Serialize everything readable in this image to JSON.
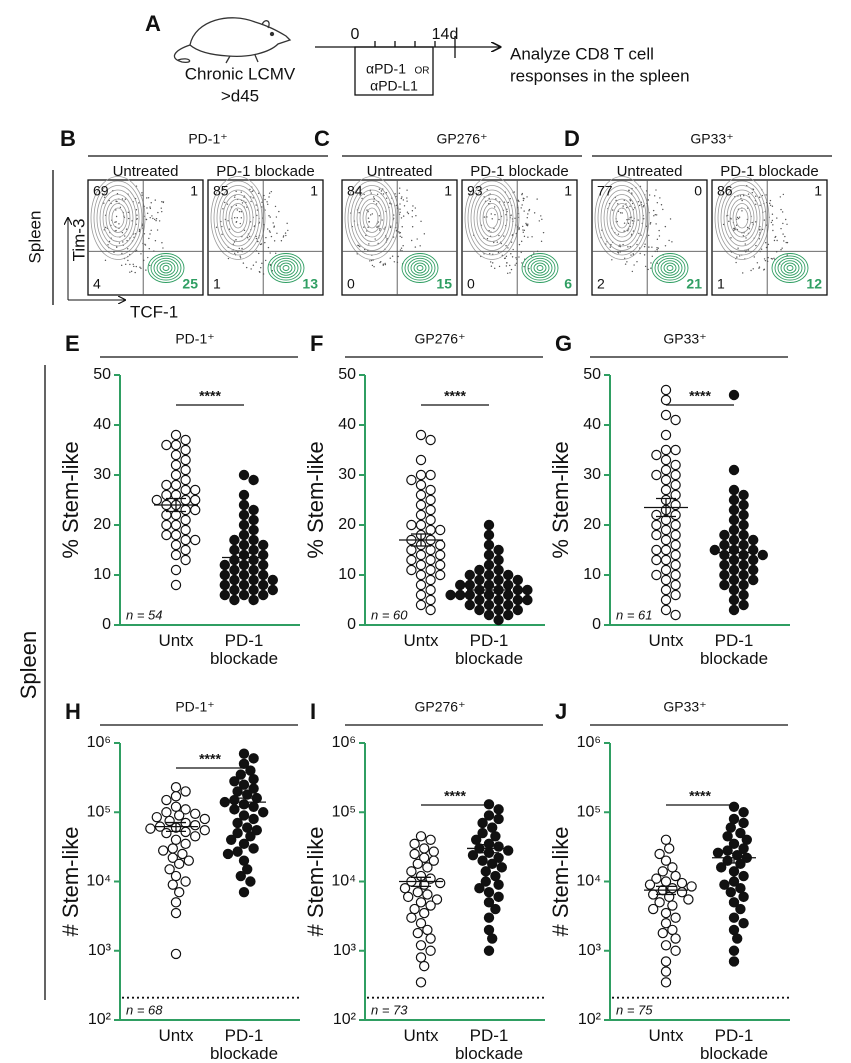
{
  "panel_a": {
    "letter": "A",
    "model_1": "Chronic LCMV",
    "model_2": ">d45",
    "day_start": "0",
    "day_end": "14d",
    "treatment_1": "αPD-1",
    "treatment_or": "OR",
    "treatment_2": "αPD-L1",
    "readout_1": "Analyze CD8 T cell",
    "readout_2": "responses in the spleen"
  },
  "flow": {
    "row_label": "Spleen",
    "y_marker": "Tim-3",
    "x_marker": "TCF-1",
    "panels": [
      {
        "letter": "B",
        "title": "PD-1⁺",
        "plots": [
          {
            "label": "Untreated",
            "q": [
              69,
              1,
              4,
              25
            ]
          },
          {
            "label": "PD-1 blockade",
            "q": [
              85,
              1,
              1,
              13
            ]
          }
        ]
      },
      {
        "letter": "C",
        "title": "GP276⁺",
        "plots": [
          {
            "label": "Untreated",
            "q": [
              84,
              1,
              0,
              15
            ]
          },
          {
            "label": "PD-1 blockade",
            "q": [
              93,
              1,
              0,
              6
            ]
          }
        ]
      },
      {
        "letter": "D",
        "title": "GP33⁺",
        "plots": [
          {
            "label": "Untreated",
            "q": [
              77,
              0,
              2,
              21
            ]
          },
          {
            "label": "PD-1 blockade",
            "q": [
              86,
              1,
              1,
              12
            ]
          }
        ]
      }
    ]
  },
  "row_label": "Spleen",
  "chart_data": [
    {
      "type": "dot",
      "letter": "E",
      "title": "PD-1⁺",
      "y_label": "% Stem-like",
      "categories": [
        "Untx",
        "PD-1 blockade"
      ],
      "markers": [
        "open",
        "filled"
      ],
      "significance": "****",
      "n_label": "n = 54",
      "ylim": [
        0,
        50
      ],
      "yticks": [
        0,
        10,
        20,
        30,
        40,
        50
      ],
      "values": [
        [
          38,
          37,
          36,
          36,
          35,
          34,
          33,
          32,
          31,
          30,
          29,
          28,
          28,
          27,
          27,
          26,
          26,
          25,
          25,
          25,
          24,
          24,
          23,
          23,
          22,
          22,
          21,
          20,
          20,
          19,
          18,
          18,
          17,
          17,
          16,
          15,
          14,
          13,
          11,
          8
        ],
        [
          30,
          29,
          26,
          24,
          23,
          22,
          21,
          20,
          19,
          18,
          17,
          17,
          16,
          16,
          15,
          15,
          14,
          14,
          13,
          13,
          12,
          12,
          12,
          11,
          11,
          10,
          10,
          10,
          9,
          9,
          9,
          8,
          8,
          8,
          7,
          7,
          7,
          6,
          6,
          6,
          5,
          5
        ]
      ],
      "means": [
        24,
        13.5
      ],
      "sem": [
        1.3,
        0.9
      ]
    },
    {
      "type": "dot",
      "letter": "F",
      "title": "GP276⁺",
      "y_label": "% Stem-like",
      "categories": [
        "Untx",
        "PD-1 blockade"
      ],
      "markers": [
        "open",
        "filled"
      ],
      "significance": "****",
      "n_label": "n = 60",
      "ylim": [
        0,
        50
      ],
      "yticks": [
        0,
        10,
        20,
        30,
        40,
        50
      ],
      "values": [
        [
          38,
          37,
          33,
          30,
          30,
          29,
          28,
          27,
          26,
          25,
          24,
          23,
          22,
          21,
          20,
          20,
          19,
          19,
          18,
          17,
          17,
          16,
          16,
          15,
          15,
          14,
          14,
          13,
          13,
          12,
          12,
          11,
          11,
          10,
          10,
          9,
          8,
          7,
          6,
          5,
          4,
          3
        ],
        [
          20,
          18,
          16,
          15,
          14,
          13,
          12,
          11,
          11,
          10,
          10,
          10,
          9,
          9,
          9,
          8,
          8,
          8,
          8,
          7,
          7,
          7,
          7,
          6,
          6,
          6,
          6,
          6,
          5,
          5,
          5,
          5,
          4,
          4,
          4,
          3,
          3,
          3,
          2,
          2,
          1
        ]
      ],
      "means": [
        17,
        7
      ],
      "sem": [
        1.2,
        0.6
      ]
    },
    {
      "type": "dot",
      "letter": "G",
      "title": "GP33⁺",
      "y_label": "% Stem-like",
      "categories": [
        "Untx",
        "PD-1 blockade"
      ],
      "markers": [
        "open",
        "filled"
      ],
      "significance": "****",
      "n_label": "n = 61",
      "ylim": [
        0,
        50
      ],
      "yticks": [
        0,
        10,
        20,
        30,
        40,
        50
      ],
      "values": [
        [
          47,
          45,
          42,
          41,
          38,
          35,
          35,
          34,
          33,
          32,
          31,
          30,
          30,
          29,
          28,
          27,
          26,
          25,
          24,
          23,
          22,
          22,
          21,
          20,
          20,
          19,
          18,
          18,
          17,
          16,
          15,
          15,
          14,
          13,
          13,
          12,
          11,
          10,
          10,
          9,
          8,
          7,
          6,
          5,
          3,
          2
        ],
        [
          46,
          31,
          27,
          26,
          25,
          24,
          23,
          22,
          21,
          20,
          19,
          18,
          18,
          17,
          17,
          16,
          16,
          15,
          15,
          15,
          14,
          14,
          14,
          13,
          13,
          12,
          12,
          11,
          11,
          10,
          10,
          9,
          9,
          8,
          8,
          7,
          6,
          5,
          4,
          3
        ]
      ],
      "means": [
        23.5,
        14.5
      ],
      "sem": [
        1.8,
        1.1
      ]
    },
    {
      "type": "dot",
      "letter": "H",
      "title": "PD-1⁺",
      "y_label": "# Stem-like",
      "categories": [
        "Untx",
        "PD-1 blockade"
      ],
      "markers": [
        "open",
        "filled"
      ],
      "significance": "****",
      "n_label": "n = 68",
      "log_scale": true,
      "detection_limit": 210,
      "ylim": [
        100,
        1000000
      ],
      "yticks": [
        {
          "value": 100,
          "label": "10²"
        },
        {
          "value": 1000,
          "label": "10³"
        },
        {
          "value": 10000,
          "label": "10⁴"
        },
        {
          "value": 100000,
          "label": "10⁵"
        },
        {
          "value": 1000000,
          "label": "10⁶"
        }
      ],
      "values": [
        [
          230000,
          200000,
          170000,
          150000,
          120000,
          110000,
          100000,
          95000,
          90000,
          85000,
          80000,
          75000,
          70000,
          65000,
          62000,
          60000,
          58000,
          55000,
          52000,
          50000,
          45000,
          40000,
          35000,
          30000,
          28000,
          25000,
          22000,
          20000,
          18000,
          15000,
          12000,
          10000,
          9000,
          7000,
          5000,
          3500,
          900
        ],
        [
          700000,
          600000,
          500000,
          400000,
          350000,
          300000,
          280000,
          250000,
          220000,
          200000,
          180000,
          160000,
          150000,
          140000,
          130000,
          120000,
          110000,
          100000,
          90000,
          80000,
          70000,
          60000,
          55000,
          50000,
          45000,
          40000,
          35000,
          30000,
          27000,
          25000,
          20000,
          15000,
          12000,
          10000,
          7000
        ]
      ],
      "means": [
        62000,
        140000
      ],
      "sem": [
        9000,
        20000
      ]
    },
    {
      "type": "dot",
      "letter": "I",
      "title": "GP276⁺",
      "y_label": "# Stem-like",
      "categories": [
        "Untx",
        "PD-1 blockade"
      ],
      "markers": [
        "open",
        "filled"
      ],
      "significance": "****",
      "n_label": "n = 73",
      "log_scale": true,
      "detection_limit": 210,
      "ylim": [
        100,
        1000000
      ],
      "yticks": [
        {
          "value": 100,
          "label": "10²"
        },
        {
          "value": 1000,
          "label": "10³"
        },
        {
          "value": 10000,
          "label": "10⁴"
        },
        {
          "value": 100000,
          "label": "10⁵"
        },
        {
          "value": 1000000,
          "label": "10⁶"
        }
      ],
      "values": [
        [
          45000,
          40000,
          35000,
          30000,
          27000,
          25000,
          22000,
          20000,
          18000,
          16000,
          14000,
          12000,
          11000,
          10000,
          9500,
          9000,
          8000,
          7000,
          6500,
          6000,
          5500,
          5000,
          4500,
          4000,
          3500,
          3000,
          2500,
          2000,
          1800,
          1500,
          1200,
          1000,
          800,
          600,
          350
        ],
        [
          130000,
          110000,
          90000,
          80000,
          70000,
          60000,
          50000,
          45000,
          40000,
          35000,
          32000,
          30000,
          28000,
          26000,
          24000,
          22000,
          20000,
          18000,
          16000,
          14000,
          12000,
          10000,
          9000,
          8000,
          7000,
          6000,
          5000,
          4000,
          3000,
          2000,
          1500,
          1000
        ]
      ],
      "means": [
        10000,
        30000
      ],
      "sem": [
        1500,
        4000
      ]
    },
    {
      "type": "dot",
      "letter": "J",
      "title": "GP33⁺",
      "y_label": "# Stem-like",
      "categories": [
        "Untx",
        "PD-1 blockade"
      ],
      "markers": [
        "open",
        "filled"
      ],
      "significance": "****",
      "n_label": "n = 75",
      "log_scale": true,
      "detection_limit": 210,
      "ylim": [
        100,
        1000000
      ],
      "yticks": [
        {
          "value": 100,
          "label": "10²"
        },
        {
          "value": 1000,
          "label": "10³"
        },
        {
          "value": 10000,
          "label": "10⁴"
        },
        {
          "value": 100000,
          "label": "10⁵"
        },
        {
          "value": 1000000,
          "label": "10⁶"
        }
      ],
      "values": [
        [
          40000,
          30000,
          25000,
          20000,
          16000,
          14000,
          12000,
          11000,
          10000,
          9500,
          9000,
          8500,
          8000,
          7500,
          7000,
          6500,
          6000,
          5500,
          5000,
          4500,
          4000,
          3500,
          3000,
          2500,
          2000,
          1800,
          1500,
          1200,
          1000,
          700,
          500,
          350
        ],
        [
          120000,
          100000,
          80000,
          70000,
          60000,
          50000,
          45000,
          40000,
          35000,
          30000,
          28000,
          26000,
          24000,
          22000,
          20000,
          18000,
          16000,
          14000,
          12000,
          10000,
          9000,
          8000,
          7000,
          6000,
          5000,
          4000,
          3000,
          2500,
          2000,
          1500,
          1000,
          700
        ]
      ],
      "means": [
        7500,
        22000
      ],
      "sem": [
        1000,
        3500
      ]
    }
  ]
}
